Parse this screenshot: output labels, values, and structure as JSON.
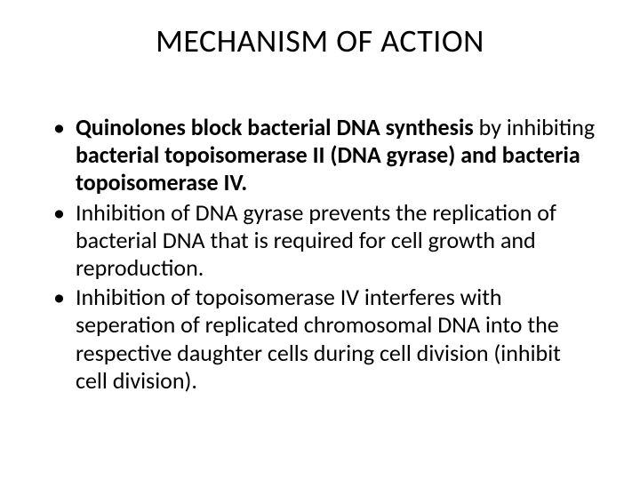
{
  "title": "MECHANISM OF ACTION",
  "title_fontsize": 36,
  "body_fontsize": 26,
  "text_color": "#000000",
  "background_color": "#ffffff",
  "bullets": {
    "b1": {
      "seg1": "Quinolones block bacterial DNA synthesis",
      "seg2": " by inhibiting ",
      "seg3": "bacterial topoisomerase II (DNA gyrase) and bacteria topoisomerase IV."
    },
    "b2": "Inhibition of DNA gyrase prevents the replication of bacterial DNA that is required for cell growth and reproduction.",
    "b3": "Inhibition of topoisomerase IV interferes with seperation of replicated chromosomal DNA into the respective daughter cells during cell division (inhibit cell division)."
  },
  "bullet_marker": "•"
}
